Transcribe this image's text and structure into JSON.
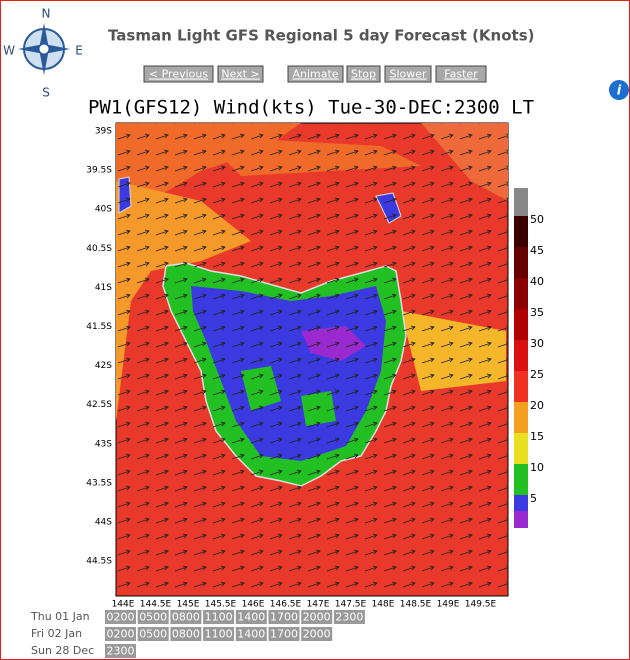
{
  "header": {
    "title": "Tasman Light GFS Regional 5 day Forecast (Knots)"
  },
  "compass": {
    "north": "N",
    "south": "S",
    "east": "E",
    "west": "W"
  },
  "controls": [
    "< Previous",
    "Next >",
    "Animate",
    "Stop",
    "Slower",
    "Faster"
  ],
  "info": "i",
  "map": {
    "title": "PW1(GFS12) Wind(kts) Tue-30-DEC:2300 LT",
    "lat_labels": [
      "39S",
      "39.5S",
      "40S",
      "40.5S",
      "41S",
      "41.5S",
      "42S",
      "42.5S",
      "43S",
      "43.5S",
      "44S",
      "44.5S"
    ],
    "lon_labels": [
      "144E",
      "144.5E",
      "145E",
      "145.5E",
      "146E",
      "146.5E",
      "147E",
      "147.5E",
      "148E",
      "148.5E",
      "149E",
      "149.5E"
    ],
    "scale_labels": [
      "50",
      "45",
      "40",
      "35",
      "30",
      "25",
      "20",
      "15",
      "10",
      "5"
    ]
  },
  "schedule": [
    {
      "day": "Thu 01 Jan",
      "times": [
        "0200",
        "0500",
        "0800",
        "1100",
        "1400",
        "1700",
        "2000",
        "2300"
      ]
    },
    {
      "day": "Fri 02 Jan",
      "times": [
        "0200",
        "0500",
        "0800",
        "1100",
        "1400",
        "1700",
        "2000"
      ]
    },
    {
      "day": "Sun 28 Dec",
      "times": [
        "2300"
      ]
    }
  ]
}
